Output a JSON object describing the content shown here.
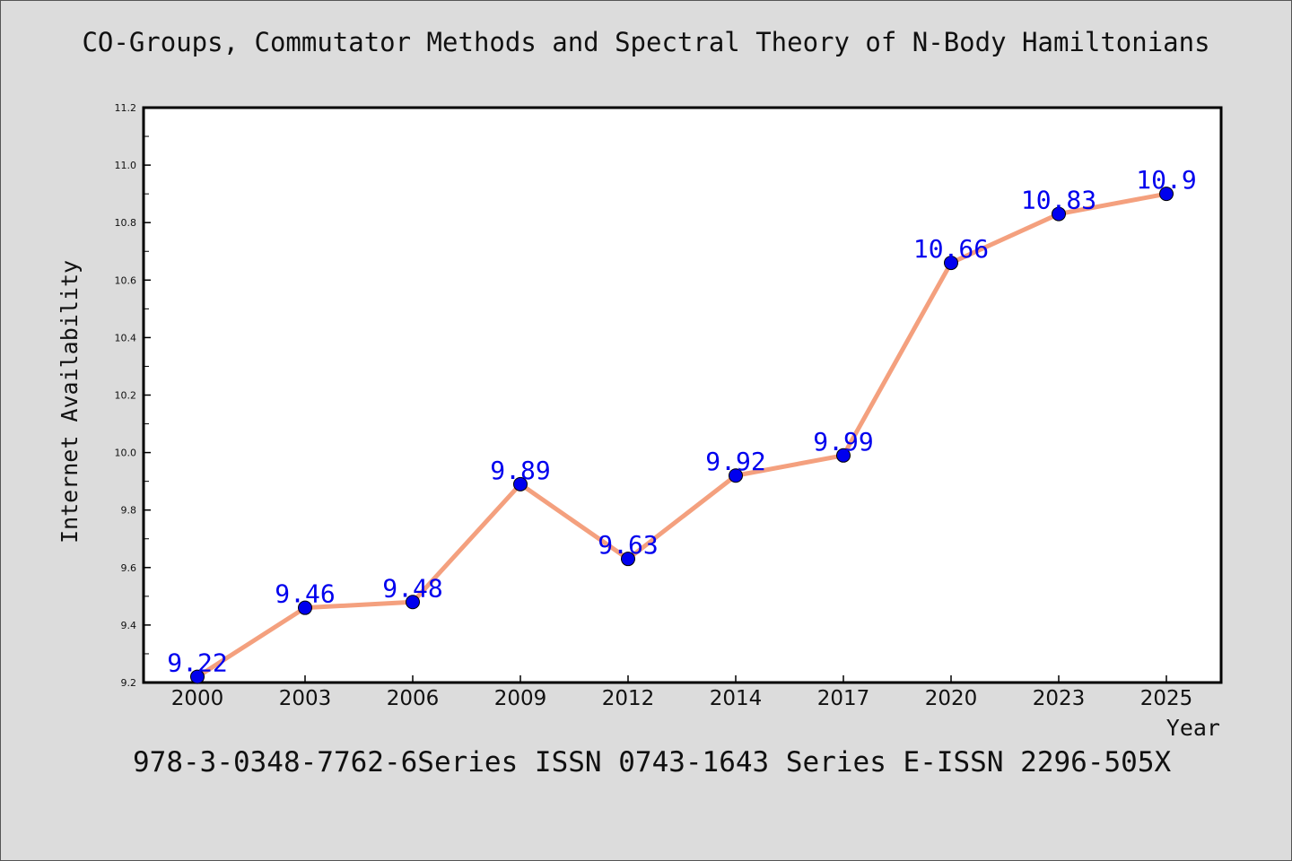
{
  "title": "CO-Groups, Commutator Methods and Spectral Theory of N-Body Hamiltonians",
  "footer": "978-3-0348-7762-6Series ISSN 0743-1643 Series E-ISSN 2296-505X",
  "chart_data": {
    "type": "line",
    "categories": [
      "2000",
      "2003",
      "2006",
      "2009",
      "2012",
      "2014",
      "2017",
      "2020",
      "2023",
      "2025"
    ],
    "values": [
      9.22,
      9.46,
      9.48,
      9.89,
      9.63,
      9.92,
      9.99,
      10.66,
      10.83,
      10.9
    ],
    "data_labels": [
      "9.22",
      "9.46",
      "9.48",
      "9.89",
      "9.63",
      "9.92",
      "9.99",
      "10.66",
      "10.83",
      "10.9"
    ],
    "xlabel": "Year",
    "ylabel": "Internet Availability",
    "ylim": [
      9.2,
      11.2
    ],
    "yticks": [
      "9.2",
      "9.4",
      "9.6",
      "9.8",
      "10.0",
      "10.2",
      "10.4",
      "10.6",
      "10.8",
      "11.0",
      "11.2"
    ],
    "grid": false,
    "colors": {
      "line": "#f4a07e",
      "marker": "#0000ee",
      "label": "#0000ee"
    }
  }
}
